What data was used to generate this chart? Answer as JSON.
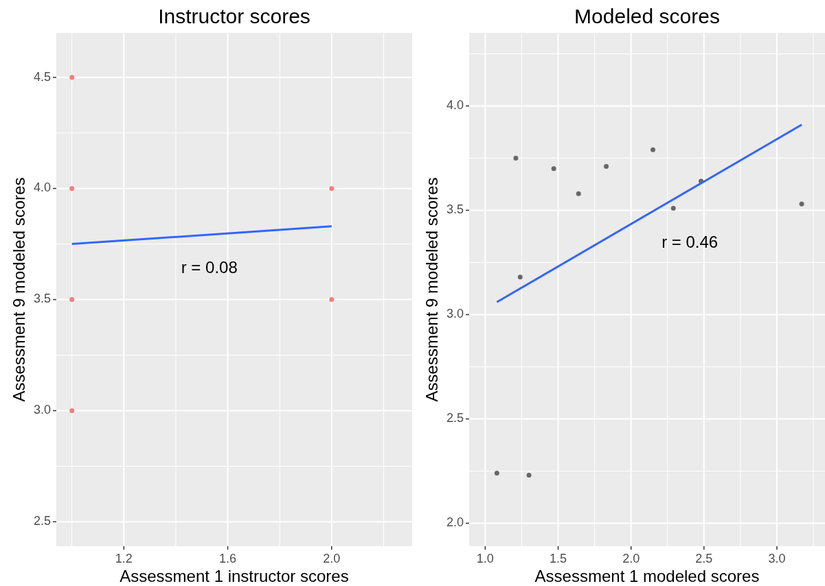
{
  "chart_data": [
    {
      "type": "scatter",
      "title": "Instructor scores",
      "xlabel": "Assessment 1 instructor scores",
      "ylabel": "Assessment 9 modeled scores",
      "xlim": [
        0.94,
        2.31
      ],
      "ylim": [
        2.39,
        4.7
      ],
      "xticks": [
        1.2,
        1.6,
        {
          "value": 2,
          "label": "2.0"
        }
      ],
      "yticks": [
        2.5,
        {
          "value": 3,
          "label": "3.0"
        },
        3.5,
        {
          "value": 4,
          "label": "4.0"
        },
        4.5
      ],
      "grid": true,
      "series": [
        {
          "marker": "circle",
          "color": "#ff0000",
          "x": [
            1,
            1,
            1,
            1,
            2,
            2
          ],
          "values": [
            4.5,
            4,
            3.5,
            3,
            4,
            3.5
          ]
        },
        {
          "type": "line",
          "color": "#3366ff",
          "x": [
            1,
            2
          ],
          "values": [
            3.75,
            3.83
          ]
        }
      ],
      "annotations": [
        "r = 0.08"
      ]
    },
    {
      "type": "scatter",
      "title": "Modeled scores",
      "xlabel": "Assessment 1 modeled scores",
      "ylabel": "Assessment 9 modeled scores",
      "xlim": [
        0.89,
        3.33
      ],
      "ylim": [
        1.89,
        4.35
      ],
      "xticks": [
        {
          "value": 1,
          "label": "1.0"
        },
        1.5,
        {
          "value": 2,
          "label": "2.0"
        },
        2.5,
        {
          "value": 3,
          "label": "3.0"
        }
      ],
      "yticks": [
        {
          "value": 2,
          "label": "2.0"
        },
        2.5,
        {
          "value": 3,
          "label": "3.0"
        },
        3.5,
        {
          "value": 4,
          "label": "4.0"
        }
      ],
      "grid": true,
      "series": [
        {
          "marker": "circle",
          "color": "#595959",
          "x": [
            1.08,
            1.21,
            1.24,
            1.3,
            1.47,
            1.64,
            1.83,
            2.15,
            2.29,
            2.48,
            3.17
          ],
          "values": [
            2.24,
            3.75,
            3.18,
            2.23,
            3.7,
            3.58,
            3.71,
            3.79,
            3.51,
            3.64,
            3.53
          ]
        },
        {
          "type": "line",
          "color": "#3366ff",
          "x": [
            1.08,
            3.17
          ],
          "values": [
            3.06,
            3.91
          ]
        }
      ],
      "annotations": [
        "r = 0.46"
      ]
    }
  ]
}
